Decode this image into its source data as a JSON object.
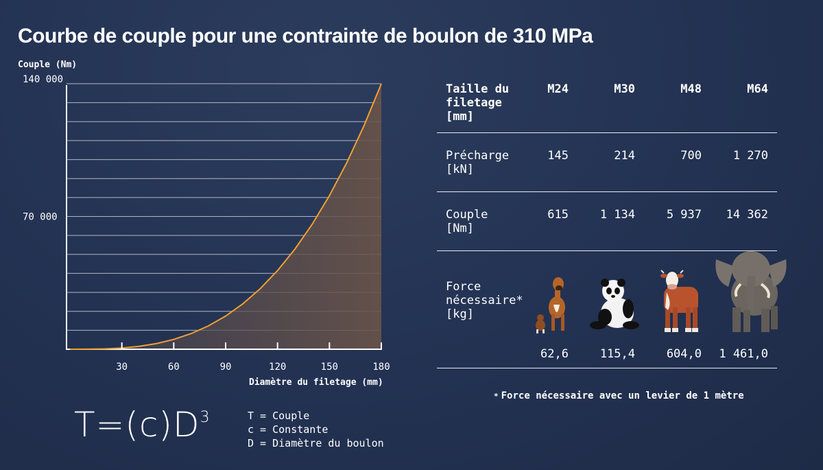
{
  "title": "Courbe de couple pour une contrainte de boulon de 310 MPa",
  "chart_data": {
    "type": "line",
    "title": "Courbe de couple pour une contrainte de boulon de 310 MPa",
    "ylabel": "Couple (Nm)",
    "xlabel": "Diamètre du filetage (mm)",
    "xlim": [
      0,
      180
    ],
    "ylim": [
      0,
      140000
    ],
    "x_ticks": [
      30,
      60,
      90,
      120,
      150,
      180
    ],
    "x_tick_labels": [
      "30",
      "60",
      "90",
      "120",
      "150",
      "180"
    ],
    "y_ticks": [
      70000,
      140000
    ],
    "y_tick_labels": [
      "70 000",
      "140 000"
    ],
    "grid": true,
    "area_fill": true,
    "series": [
      {
        "x": [
          0,
          10,
          20,
          30,
          40,
          50,
          60,
          70,
          80,
          90,
          100,
          110,
          120,
          130,
          140,
          150,
          160,
          170,
          180
        ],
        "values": [
          0,
          24,
          192,
          648,
          1536,
          3000,
          5184,
          8232,
          12288,
          17496,
          24000,
          31944,
          41472,
          52728,
          65856,
          81000,
          98304,
          117912,
          139968
        ]
      }
    ]
  },
  "formula": {
    "main": "T=(c)D",
    "exponent": "3"
  },
  "formula_legend": [
    "T = Couple",
    "c = Constante",
    "D = Diamètre du boulon"
  ],
  "table": {
    "header": {
      "label": "Taille du\nfiletage\n[mm]",
      "cols": [
        "M24",
        "M30",
        "M48",
        "M64"
      ]
    },
    "preload": {
      "label": "Précharge\n[kN]",
      "values": [
        "145",
        "214",
        "700",
        "1 270"
      ]
    },
    "torque": {
      "label": "Couple\n[Nm]",
      "values": [
        "615",
        "1 134",
        "5 937",
        "14 362"
      ]
    },
    "force": {
      "label": "Force\nnécessaire*\n[kg]",
      "animals": [
        "dog-icon",
        "panda-icon",
        "cow-icon",
        "elephant-icon"
      ],
      "values": [
        "62,6",
        "115,4",
        "604,0",
        "1 461,0"
      ]
    }
  },
  "footnote": {
    "star": "*",
    "text": "Force nécessaire avec un levier de 1 mètre"
  },
  "colors": {
    "curve": "#f0a030",
    "background": "#243352",
    "grid": "#c8ced8"
  }
}
